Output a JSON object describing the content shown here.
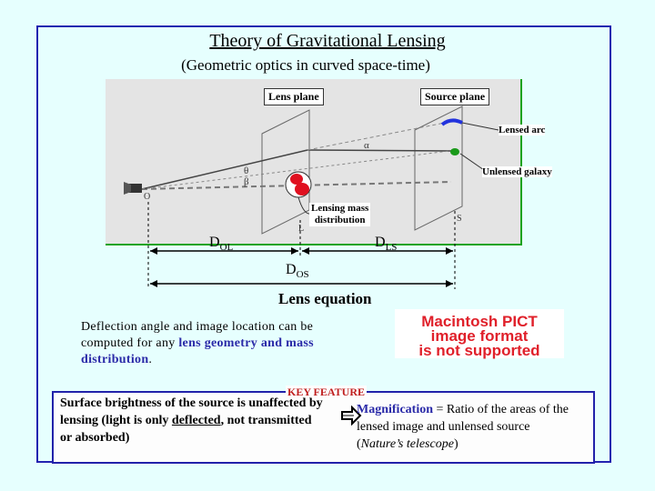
{
  "title": "Theory of Gravitational Lensing",
  "subtitle": "(Geometric optics in curved space-time)",
  "diagram": {
    "lens_plane": "Lens plane",
    "source_plane": "Source plane",
    "lensed_arc": "Lensed arc",
    "unlensed_galaxy": "Unlensed galaxy",
    "lensing_mass_1": "Lensing mass",
    "lensing_mass_2": "distribution",
    "point_O": "O",
    "point_L": "L",
    "point_S": "S",
    "angle_alpha": "α",
    "angle_theta": "θ",
    "angle_beta": "β",
    "d_ol": {
      "main": "D",
      "sub": "OL"
    },
    "d_ls": {
      "main": "D",
      "sub": "LS"
    },
    "d_os": {
      "main": "D",
      "sub": "OS"
    }
  },
  "lens_equation": "Lens equation",
  "deflection": {
    "part1": "Deflection angle and image location can be computed for any ",
    "highlight": "lens geometry and mass distribution",
    "part2": "."
  },
  "pict_notice": {
    "line1": "Macintosh PICT",
    "line2": "image format",
    "line3": "is not supported"
  },
  "key_feature": "KEY FEATURE",
  "surface": {
    "part1": "Surface brightness of the source is unaffected by lensing (light is only ",
    "underlined": "deflected",
    "part2": ", not transmitted or absorbed)"
  },
  "magnification": {
    "label": "Magnification",
    "text": " = Ratio of the areas of the lensed image and unlensed source",
    "italic": "Nature’s telescope",
    "open": "(",
    "close": ")"
  },
  "colors": {
    "background": "#e6fffe",
    "frame": "#2323b0",
    "highlight": "#2a2aa8",
    "key_feature": "#c02020",
    "lens_mass": "#e01020",
    "galaxy": "#1a9a1a",
    "arc": "#2233dd",
    "panel_border": "#1aa31a"
  },
  "icons": [
    "telescope-icon",
    "arrow-right-icon"
  ]
}
